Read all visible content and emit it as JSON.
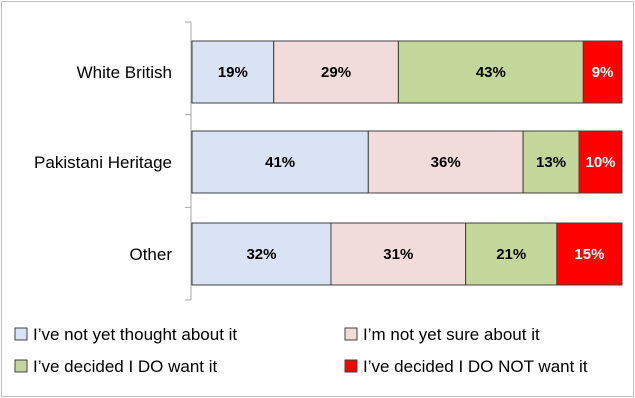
{
  "chart_data": {
    "type": "bar",
    "orientation": "horizontal",
    "stacked": true,
    "percent_stacked": true,
    "categories": [
      "White British",
      "Pakistani Heritage",
      "Other"
    ],
    "series": [
      {
        "name": "I’ve not yet thought about it",
        "values": [
          19,
          41,
          32
        ],
        "labels": [
          "19%",
          "41%",
          "32%"
        ],
        "color": "#dae3f3",
        "label_color": "#000000"
      },
      {
        "name": "I’m not yet sure about it",
        "values": [
          29,
          36,
          31
        ],
        "labels": [
          "29%",
          "36%",
          "31%"
        ],
        "color": "#f2dcdb",
        "label_color": "#000000"
      },
      {
        "name": "I’ve decided I DO want it",
        "values": [
          43,
          13,
          21
        ],
        "labels": [
          "43%",
          "13%",
          "21%"
        ],
        "color": "#c4d79b",
        "label_color": "#000000"
      },
      {
        "name": "I’ve decided I DO NOT want it",
        "values": [
          9,
          10,
          15
        ],
        "labels": [
          "9%",
          "10%",
          "15%"
        ],
        "color": "#ff0000",
        "label_color": "#ffffff"
      }
    ],
    "title": "",
    "xlabel": "",
    "ylabel": "",
    "grid": false,
    "legend_position": "bottom"
  }
}
